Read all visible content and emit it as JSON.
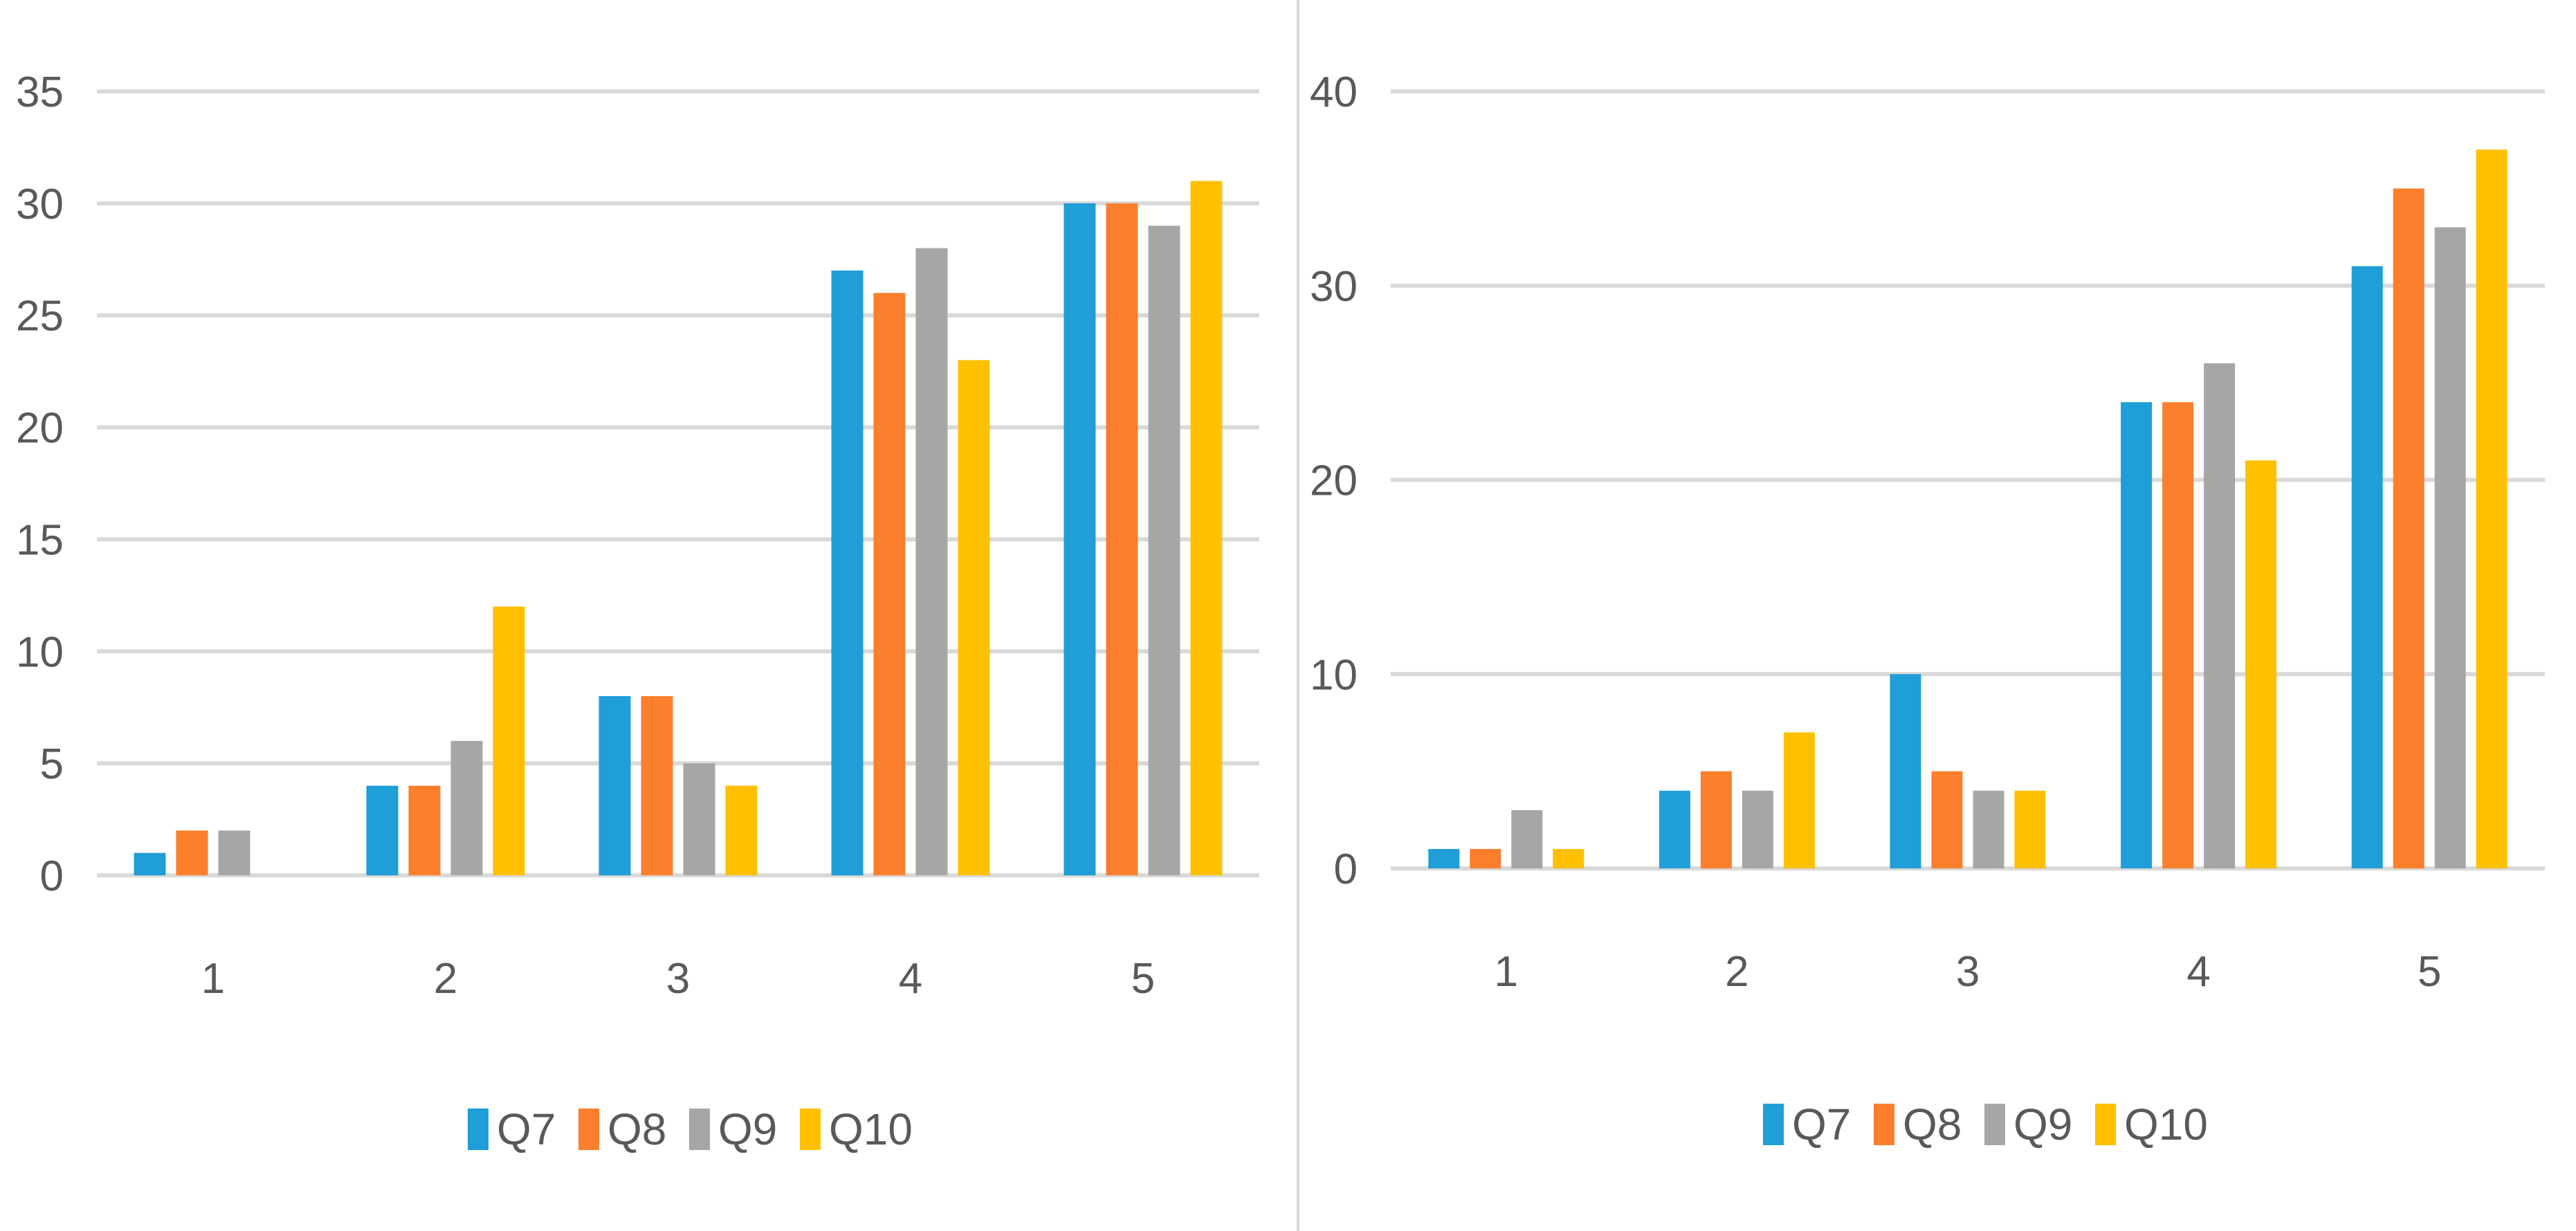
{
  "colors": {
    "Q7": "#1f9ed8",
    "Q8": "#fb7f2c",
    "Q9": "#a6a6a6",
    "Q10": "#fec000",
    "grid": "#d9d9d9",
    "text": "#595959"
  },
  "chart_data": [
    {
      "type": "bar",
      "title": "",
      "xlabel": "",
      "ylabel": "",
      "categories": [
        "1",
        "2",
        "3",
        "4",
        "5"
      ],
      "ylim": [
        0,
        35
      ],
      "yticks": [
        0,
        5,
        10,
        15,
        20,
        25,
        30,
        35
      ],
      "grid": true,
      "legend_position": "bottom",
      "series": [
        {
          "name": "Q7",
          "values": [
            1,
            4,
            8,
            27,
            30
          ]
        },
        {
          "name": "Q8",
          "values": [
            2,
            4,
            8,
            26,
            30
          ]
        },
        {
          "name": "Q9",
          "values": [
            2,
            6,
            5,
            28,
            29
          ]
        },
        {
          "name": "Q10",
          "values": [
            0,
            12,
            4,
            23,
            31
          ]
        }
      ]
    },
    {
      "type": "bar",
      "title": "",
      "xlabel": "",
      "ylabel": "",
      "categories": [
        "1",
        "2",
        "3",
        "4",
        "5"
      ],
      "ylim": [
        0,
        40
      ],
      "yticks": [
        0,
        10,
        20,
        30,
        40
      ],
      "grid": true,
      "legend_position": "bottom",
      "series": [
        {
          "name": "Q7",
          "values": [
            1,
            4,
            10,
            24,
            31
          ]
        },
        {
          "name": "Q8",
          "values": [
            1,
            5,
            5,
            24,
            35
          ]
        },
        {
          "name": "Q9",
          "values": [
            3,
            4,
            4,
            26,
            33
          ]
        },
        {
          "name": "Q10",
          "values": [
            1,
            7,
            4,
            21,
            37
          ]
        }
      ]
    }
  ]
}
